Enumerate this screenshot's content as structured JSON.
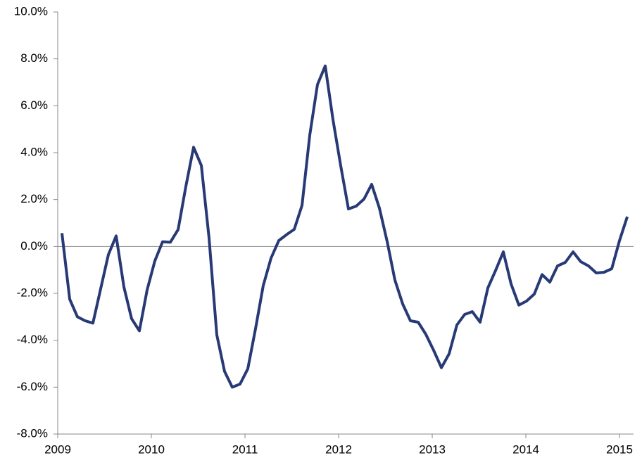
{
  "chart_data": {
    "type": "line",
    "x": [
      2009.045,
      2009.128,
      2009.21,
      2009.293,
      2009.376,
      2009.459,
      2009.541,
      2009.624,
      2009.707,
      2009.789,
      2009.872,
      2009.955,
      2010.037,
      2010.12,
      2010.203,
      2010.286,
      2010.368,
      2010.451,
      2010.534,
      2010.616,
      2010.699,
      2010.782,
      2010.864,
      2010.947,
      2011.03,
      2011.113,
      2011.195,
      2011.278,
      2011.361,
      2011.443,
      2011.526,
      2011.609,
      2011.692,
      2011.774,
      2011.857,
      2011.94,
      2012.022,
      2012.105,
      2012.188,
      2012.271,
      2012.353,
      2012.436,
      2012.519,
      2012.601,
      2012.684,
      2012.767,
      2012.85,
      2012.932,
      2013.015,
      2013.098,
      2013.18,
      2013.263,
      2013.346,
      2013.428,
      2013.511,
      2013.594,
      2013.677,
      2013.759,
      2013.842,
      2013.925,
      2014.007,
      2014.09,
      2014.173,
      2014.256,
      2014.338,
      2014.421,
      2014.504,
      2014.586,
      2014.669,
      2014.752,
      2014.835,
      2014.917,
      2015.0,
      2015.083
    ],
    "series": [
      {
        "color": "#283a75",
        "values": [
          0.57,
          -2.25,
          -3.0,
          -3.17,
          -3.27,
          -1.8,
          -0.35,
          0.45,
          -1.73,
          -3.08,
          -3.6,
          -1.85,
          -0.62,
          0.2,
          0.18,
          0.72,
          2.55,
          4.23,
          3.45,
          0.37,
          -3.77,
          -5.33,
          -6.0,
          -5.87,
          -5.22,
          -3.5,
          -1.67,
          -0.5,
          0.25,
          0.5,
          0.73,
          1.75,
          4.75,
          6.9,
          7.7,
          5.4,
          3.45,
          1.6,
          1.72,
          2.02,
          2.65,
          1.63,
          0.2,
          -1.43,
          -2.45,
          -3.17,
          -3.23,
          -3.75,
          -4.43,
          -5.17,
          -4.58,
          -3.35,
          -2.9,
          -2.78,
          -3.23,
          -1.77,
          -1.02,
          -0.23,
          -1.6,
          -2.5,
          -2.33,
          -2.03,
          -1.2,
          -1.52,
          -0.83,
          -0.68,
          -0.23,
          -0.65,
          -0.83,
          -1.13,
          -1.1,
          -0.95,
          0.25,
          1.27
        ]
      }
    ],
    "xlim": [
      2009,
      2015.15
    ],
    "xticks": [
      2009,
      2010,
      2011,
      2012,
      2013,
      2014,
      2015
    ],
    "ylim": [
      -8,
      10
    ],
    "yticks": [
      {
        "value": -8,
        "label": "-8.0%"
      },
      {
        "value": -6,
        "label": "-6.0%"
      },
      {
        "value": -4,
        "label": "-4.0%"
      },
      {
        "value": -2,
        "label": "-2.0%"
      },
      {
        "value": 0,
        "label": "0.0%"
      },
      {
        "value": 2,
        "label": "2.0%"
      },
      {
        "value": 4,
        "label": "4.0%"
      },
      {
        "value": 6,
        "label": "6.0%"
      },
      {
        "value": 8,
        "label": "8.0%"
      },
      {
        "value": 10,
        "label": "10.0%"
      }
    ],
    "grid": false
  }
}
